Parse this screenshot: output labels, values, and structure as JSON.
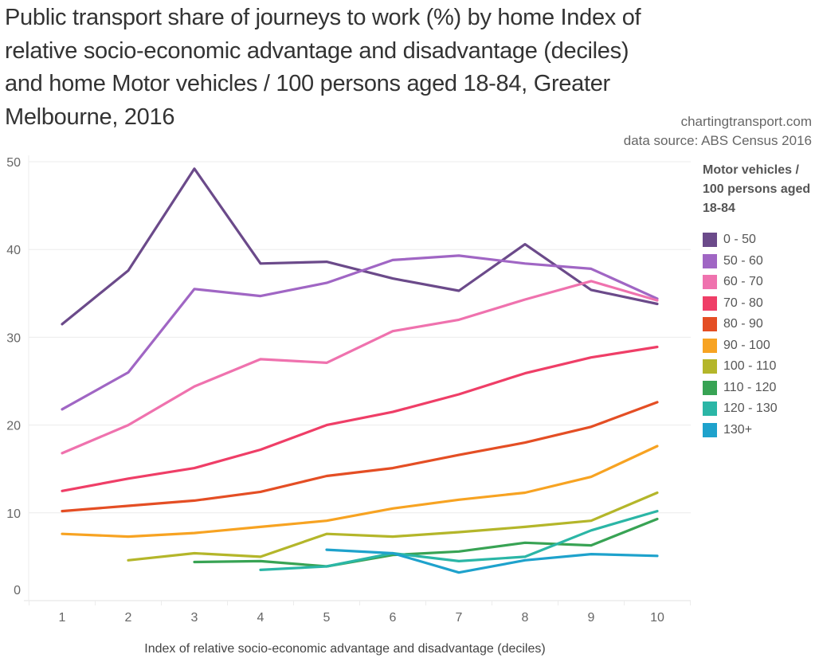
{
  "title": "Public transport share of journeys to work (%) by home Index of relative socio-economic advantage and disadvantage (deciles) and home Motor vehicles / 100 persons aged 18-84, Greater Melbourne, 2016",
  "credits": {
    "site": "chartingtransport.com",
    "source": "data source: ABS Census 2016"
  },
  "legend": {
    "title": "Motor vehicles / 100 persons aged 18-84"
  },
  "chart_data": {
    "type": "line",
    "title": "Public transport share of journeys to work (%) by home Index of relative socio-economic advantage and disadvantage (deciles) and home Motor vehicles / 100 persons aged 18-84, Greater Melbourne, 2016",
    "xlabel": "Index of relative socio-economic advantage and disadvantage (deciles)",
    "ylabel": "",
    "x": [
      1,
      2,
      3,
      4,
      5,
      6,
      7,
      8,
      9,
      10
    ],
    "x_tick_labels": [
      "1",
      "2",
      "3",
      "4",
      "5",
      "6",
      "7",
      "8",
      "9",
      "10"
    ],
    "y_tick_labels": [
      "0",
      "10",
      "20",
      "30",
      "40",
      "50"
    ],
    "y_ticks": [
      0,
      10,
      20,
      30,
      40,
      50
    ],
    "ylim": [
      0,
      50
    ],
    "grid": true,
    "legend_position": "right",
    "legend_title": "Motor vehicles / 100 persons aged 18-84",
    "series": [
      {
        "name": "0 - 50",
        "color": "#6b4a8a",
        "values": [
          31.5,
          37.6,
          49.2,
          38.4,
          38.6,
          36.7,
          35.3,
          40.6,
          35.4,
          33.8
        ]
      },
      {
        "name": "50 - 60",
        "color": "#a066c4",
        "values": [
          21.8,
          26.0,
          35.5,
          34.7,
          36.2,
          38.8,
          39.3,
          38.4,
          37.8,
          34.4
        ]
      },
      {
        "name": "60 - 70",
        "color": "#ef72ae",
        "values": [
          16.8,
          20.0,
          24.4,
          27.5,
          27.1,
          30.7,
          32.0,
          34.3,
          36.4,
          34.2
        ]
      },
      {
        "name": "70 - 80",
        "color": "#ef3e67",
        "values": [
          12.5,
          13.9,
          15.1,
          17.2,
          20.0,
          21.5,
          23.5,
          25.9,
          27.7,
          28.9
        ]
      },
      {
        "name": "80 - 90",
        "color": "#e44e24",
        "values": [
          10.2,
          10.8,
          11.4,
          12.4,
          14.2,
          15.1,
          16.6,
          18.0,
          19.8,
          22.6
        ]
      },
      {
        "name": "90 - 100",
        "color": "#f7a322",
        "values": [
          7.6,
          7.3,
          7.7,
          8.4,
          9.1,
          10.5,
          11.5,
          12.3,
          14.1,
          17.6
        ]
      },
      {
        "name": "100 - 110",
        "color": "#b4b62a",
        "values": [
          null,
          4.6,
          5.4,
          5.0,
          7.6,
          7.3,
          7.8,
          8.4,
          9.1,
          12.3
        ]
      },
      {
        "name": "110 - 120",
        "color": "#38a354",
        "values": [
          null,
          null,
          4.4,
          4.5,
          3.9,
          5.2,
          5.6,
          6.6,
          6.3,
          9.3
        ]
      },
      {
        "name": "120 - 130",
        "color": "#2bb6a6",
        "values": [
          null,
          null,
          null,
          3.5,
          3.9,
          5.4,
          4.5,
          5.0,
          8.0,
          10.2
        ]
      },
      {
        "name": "130+",
        "color": "#1ea2cc",
        "values": [
          null,
          null,
          null,
          null,
          5.8,
          5.4,
          3.2,
          4.6,
          5.3,
          5.1
        ]
      }
    ]
  }
}
